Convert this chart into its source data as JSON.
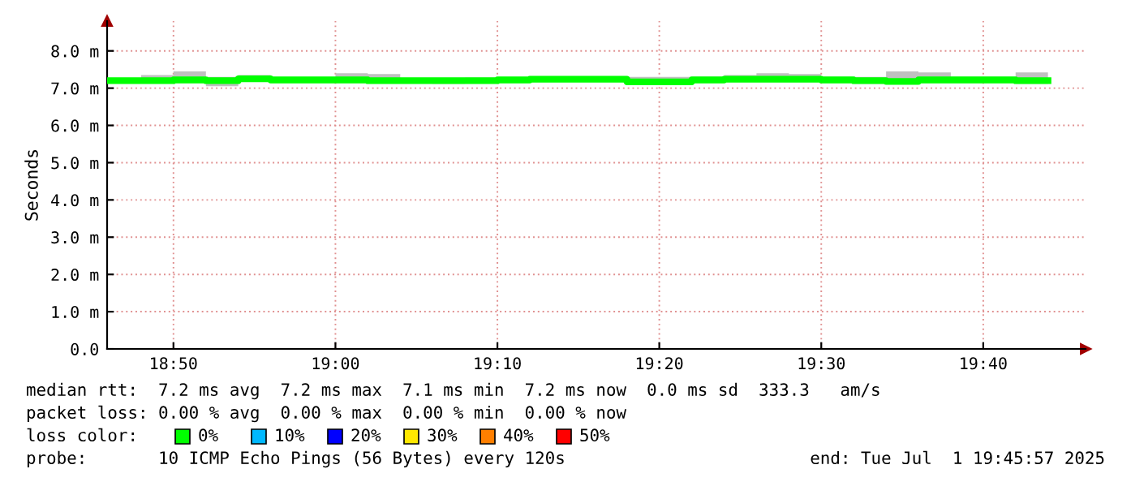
{
  "chart_data": {
    "type": "step",
    "ylabel": "Seconds",
    "x": [
      18.7667,
      18.8,
      18.8333,
      18.8667,
      18.9,
      18.9333,
      18.9667,
      19.0,
      19.0333,
      19.0667,
      19.1,
      19.1333,
      19.1667,
      19.2,
      19.2333,
      19.2667,
      19.3,
      19.3333,
      19.3667,
      19.4,
      19.4333,
      19.4667,
      19.5,
      19.5333,
      19.5667,
      19.6,
      19.6333,
      19.6667,
      19.7,
      19.7333
    ],
    "series": [
      {
        "name": "0%",
        "color": "#00ff00",
        "values": [
          7.2,
          7.2,
          7.22,
          7.2,
          7.25,
          7.22,
          7.22,
          7.22,
          7.2,
          7.2,
          7.2,
          7.2,
          7.22,
          7.24,
          7.24,
          7.24,
          7.17,
          7.17,
          7.22,
          7.24,
          7.24,
          7.24,
          7.22,
          7.2,
          7.18,
          7.22,
          7.22,
          7.22,
          7.2,
          7.2
        ],
        "lower": [
          7.15,
          7.15,
          7.15,
          7.05,
          7.2,
          7.18,
          7.18,
          7.15,
          7.15,
          7.15,
          7.12,
          7.15,
          7.18,
          7.2,
          7.2,
          7.18,
          7.12,
          7.12,
          7.15,
          7.18,
          7.18,
          7.18,
          7.15,
          7.12,
          7.12,
          7.15,
          7.18,
          7.15,
          7.12,
          7.12
        ],
        "upper": [
          7.2,
          7.35,
          7.45,
          7.3,
          7.35,
          7.25,
          7.25,
          7.4,
          7.38,
          7.25,
          7.22,
          7.28,
          7.28,
          7.26,
          7.26,
          7.2,
          7.3,
          7.3,
          7.3,
          7.35,
          7.4,
          7.38,
          7.3,
          7.3,
          7.45,
          7.42,
          7.3,
          7.3,
          7.42,
          7.42
        ]
      },
      {
        "name": "10%",
        "color": "#00b8ff",
        "values": [
          null,
          null,
          null,
          null,
          null,
          null,
          null,
          null,
          null,
          null,
          null,
          null,
          null,
          null,
          null,
          null,
          null,
          null,
          null,
          null,
          null,
          null,
          null,
          null,
          null,
          null,
          null,
          null,
          null,
          null
        ]
      },
      {
        "name": "20%",
        "color": "#0000ff",
        "values": [
          null,
          null,
          null,
          null,
          null,
          null,
          null,
          null,
          null,
          null,
          null,
          null,
          null,
          null,
          null,
          null,
          null,
          null,
          null,
          null,
          null,
          null,
          null,
          null,
          null,
          null,
          null,
          null,
          null,
          null
        ]
      },
      {
        "name": "30%",
        "color": "#ffe800",
        "values": [
          null,
          null,
          null,
          null,
          null,
          null,
          null,
          null,
          null,
          null,
          null,
          null,
          null,
          null,
          null,
          null,
          null,
          null,
          null,
          null,
          null,
          null,
          null,
          null,
          null,
          null,
          null,
          null,
          null,
          null
        ]
      },
      {
        "name": "40%",
        "color": "#ff7f00",
        "values": [
          null,
          null,
          null,
          null,
          null,
          null,
          null,
          null,
          null,
          null,
          null,
          null,
          null,
          null,
          null,
          null,
          null,
          null,
          null,
          null,
          null,
          null,
          null,
          null,
          null,
          null,
          null,
          null,
          null,
          null
        ]
      },
      {
        "name": "50%",
        "color": "#ff0000",
        "values": [
          null,
          null,
          null,
          null,
          null,
          null,
          null,
          null,
          null,
          null,
          null,
          null,
          null,
          null,
          null,
          null,
          null,
          null,
          null,
          null,
          null,
          null,
          null,
          null,
          null,
          null,
          null,
          null,
          null,
          null
        ]
      }
    ],
    "legend": "bottom",
    "legend_title": "loss color:",
    "xlim": [
      18.765,
      19.772
    ],
    "xticks": [
      {
        "value": 18.8333,
        "label": "18:50"
      },
      {
        "value": 19.0,
        "label": "19:00"
      },
      {
        "value": 19.1667,
        "label": "19:10"
      },
      {
        "value": 19.3333,
        "label": "19:20"
      },
      {
        "value": 19.5,
        "label": "19:30"
      },
      {
        "value": 19.6667,
        "label": "19:40"
      }
    ],
    "ylim": [
      0,
      8.8
    ],
    "yticks": [
      {
        "value": 0,
        "label": "0.0"
      },
      {
        "value": 1,
        "label": "1.0 m"
      },
      {
        "value": 2,
        "label": "2.0 m"
      },
      {
        "value": 3,
        "label": "3.0 m"
      },
      {
        "value": 4,
        "label": "4.0 m"
      },
      {
        "value": 5,
        "label": "5.0 m"
      },
      {
        "value": 6,
        "label": "6.0 m"
      },
      {
        "value": 7,
        "label": "7.0 m"
      },
      {
        "value": 8,
        "label": "8.0 m"
      }
    ],
    "grid": true,
    "annotations": [
      "median rtt:  7.2 ms avg  7.2 ms max  7.1 ms min  7.2 ms now  0.0 ms sd  333.3   am/s",
      "packet loss: 0.00 % avg  0.00 % max  0.00 % min  0.00 % now",
      "probe:       10 ICMP Echo Pings (56 Bytes) every 120s",
      "end: Tue Jul  1 19:45:57 2025"
    ]
  }
}
